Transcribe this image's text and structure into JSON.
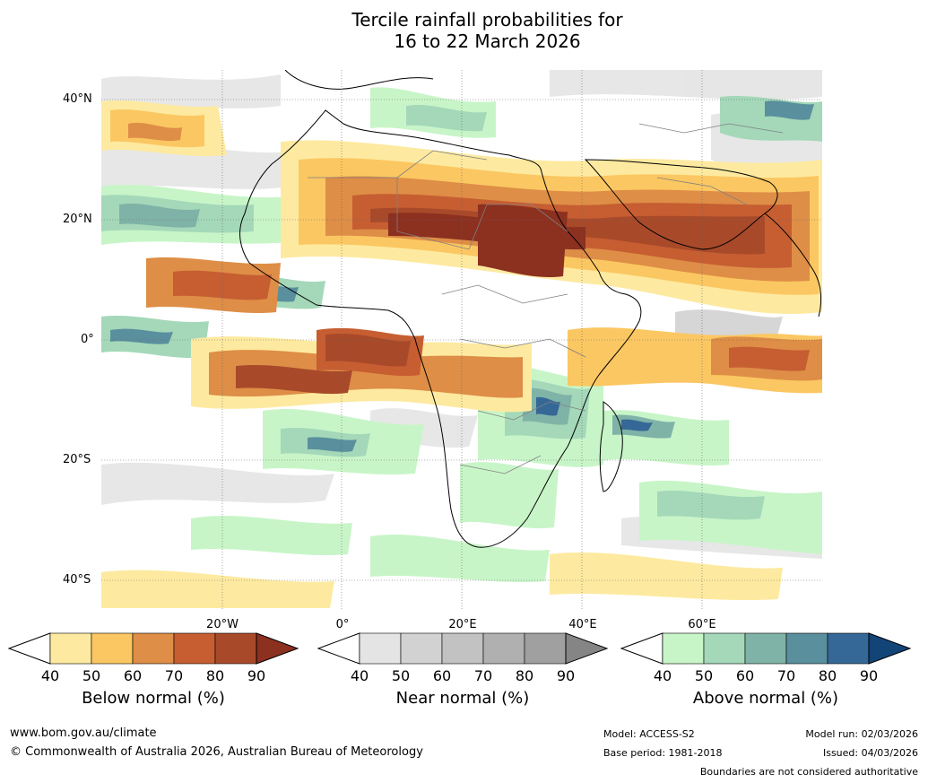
{
  "title": {
    "line1": "Tercile rainfall probabilities for",
    "line2": "16 to 22 March 2026"
  },
  "map": {
    "region": "Africa, Arabia and surrounding oceans",
    "lat_labels": [
      "40°N",
      "20°N",
      "0°",
      "20°S",
      "40°S"
    ],
    "lon_labels": [
      "20°W",
      "0°",
      "20°E",
      "40°E",
      "60°E"
    ]
  },
  "colorbars": {
    "below": {
      "label": "Below normal (%)",
      "ticks": [
        "40",
        "50",
        "60",
        "70",
        "80",
        "90"
      ],
      "colors": [
        "#ffffff",
        "#fdeaa0",
        "#fbc762",
        "#de8e46",
        "#c65e32",
        "#a84a2a",
        "#8c3020"
      ]
    },
    "near": {
      "label": "Near normal (%)",
      "ticks": [
        "40",
        "50",
        "60",
        "70",
        "80",
        "90"
      ],
      "colors": [
        "#ffffff",
        "#e4e4e4",
        "#d2d2d2",
        "#c2c2c2",
        "#b0b0b0",
        "#a0a0a0",
        "#858585"
      ]
    },
    "above": {
      "label": "Above normal (%)",
      "ticks": [
        "40",
        "50",
        "60",
        "70",
        "80",
        "90"
      ],
      "colors": [
        "#ffffff",
        "#c8f5c8",
        "#a4d8b9",
        "#80b3a7",
        "#5a8f9d",
        "#356896",
        "#134478"
      ]
    }
  },
  "footer": {
    "url": "www.bom.gov.au/climate",
    "copyright": "© Commonwealth of Australia 2026, Australian Bureau of Meteorology",
    "model": "Model: ACCESS-S2",
    "base_period": "Base period: 1981-2018",
    "model_run": "Model run: 02/03/2026",
    "issued": "Issued: 04/03/2026",
    "disclaimer": "Boundaries are not considered authoritative"
  }
}
